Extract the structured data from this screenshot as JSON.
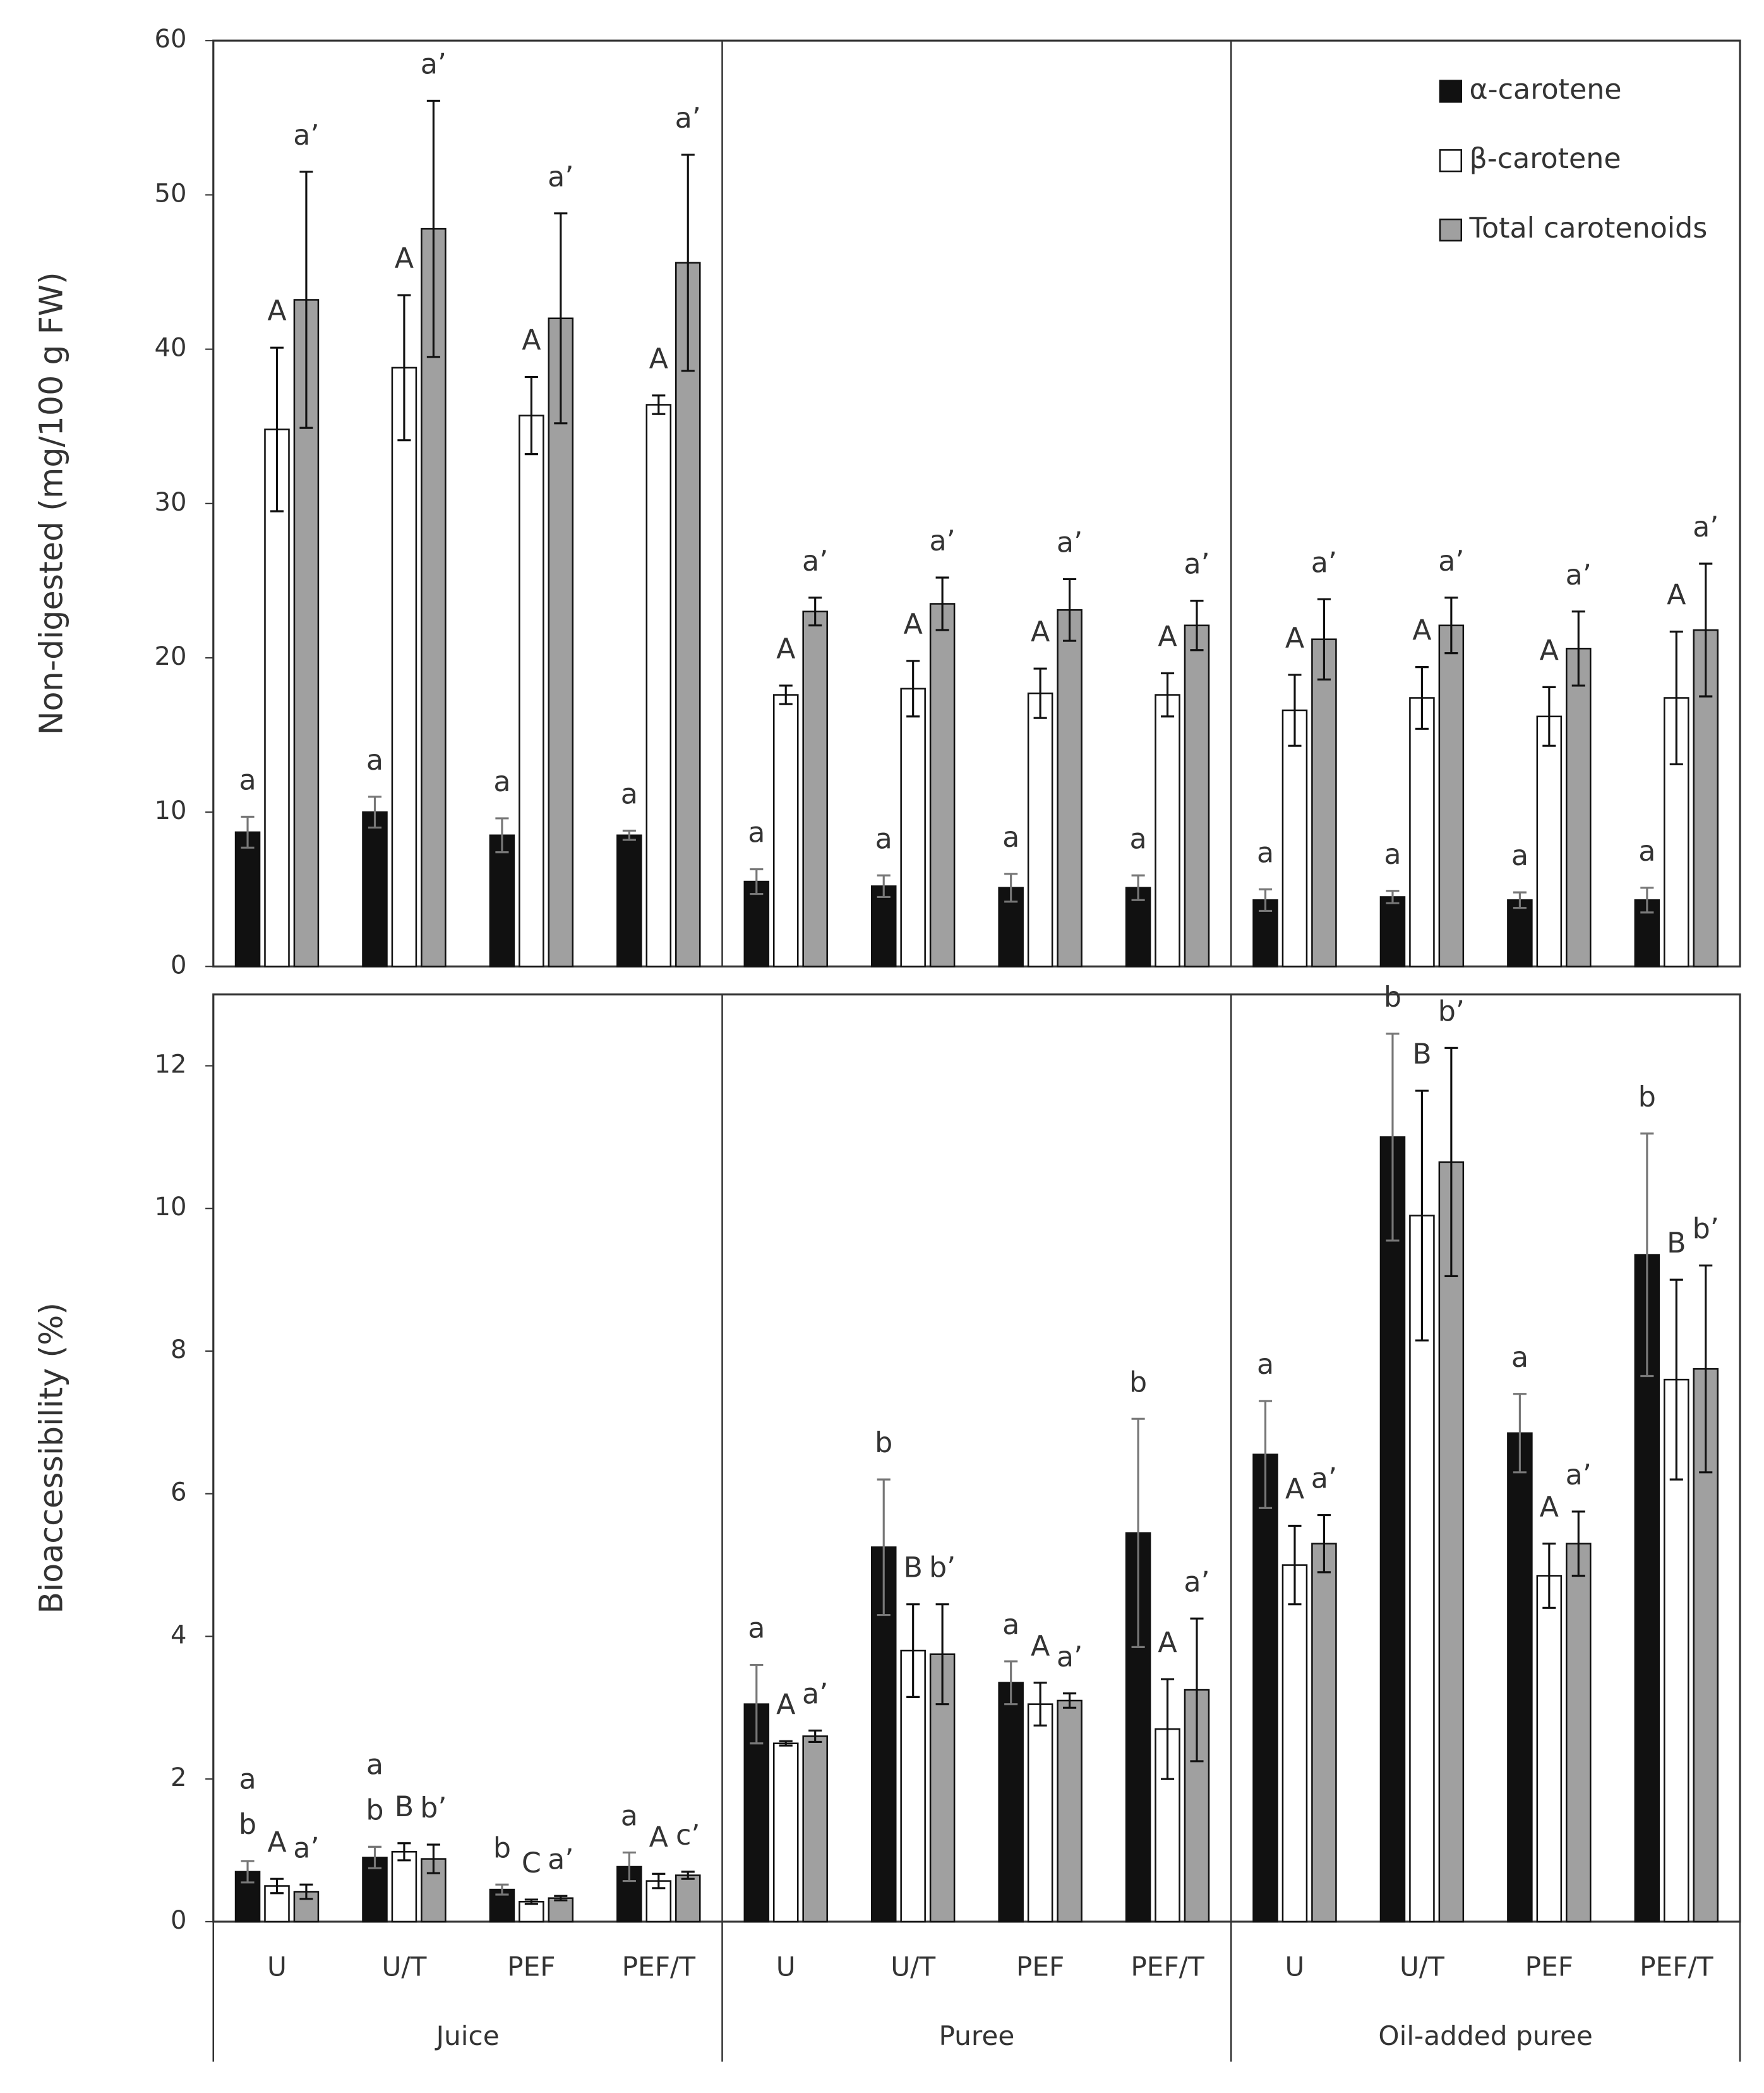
{
  "chart_data": [
    {
      "type": "bar",
      "ylabel": "Non-digested (mg/100 g FW)",
      "ylim": [
        0,
        60
      ],
      "yticks": [
        0,
        10,
        20,
        30,
        40,
        50,
        60
      ],
      "legend": "upper right",
      "series": [
        {
          "name": "α-carotene",
          "color": "#111111",
          "values": [
            8.7,
            10,
            8.5,
            8.5,
            5.5,
            5.2,
            5.1,
            5.1,
            4.3,
            4.5,
            4.3,
            4.3
          ],
          "errors": [
            1,
            1,
            1.1,
            0.3,
            0.8,
            0.7,
            0.9,
            0.8,
            0.7,
            0.4,
            0.5,
            0.8
          ],
          "letters": [
            "a",
            "a",
            "a",
            "a",
            "a",
            "a",
            "a",
            "a",
            "a",
            "a",
            "a",
            "a"
          ]
        },
        {
          "name": "β-carotene",
          "color": "#ffffff",
          "values": [
            34.8,
            38.8,
            35.7,
            36.4,
            17.6,
            18,
            17.7,
            17.6,
            16.6,
            17.4,
            16.2,
            17.4
          ],
          "errors": [
            5.3,
            4.7,
            2.5,
            0.6,
            0.6,
            1.8,
            1.6,
            1.4,
            2.3,
            2,
            1.9,
            4.3
          ],
          "letters": [
            "A",
            "A",
            "A",
            "A",
            "A",
            "A",
            "A",
            "A",
            "A",
            "A",
            "A",
            "A"
          ]
        },
        {
          "name": "Total carotenoids",
          "color": "#a0a0a0",
          "values": [
            43.2,
            47.8,
            42,
            45.6,
            23,
            23.5,
            23.1,
            22.1,
            21.2,
            22.1,
            20.6,
            21.8
          ],
          "errors": [
            8.3,
            8.3,
            6.8,
            7,
            0.9,
            1.7,
            2,
            1.6,
            2.6,
            1.8,
            2.4,
            4.3
          ],
          "letters": [
            "a’",
            "a’",
            "a’",
            "a’",
            "a’",
            "a’",
            "a’",
            "a’",
            "a’",
            "a’",
            "a’",
            "a’"
          ]
        }
      ]
    },
    {
      "type": "bar",
      "ylabel": "Bioaccessibility (%)",
      "ylim": [
        0,
        13
      ],
      "yticks": [
        0,
        2,
        4,
        6,
        8,
        10,
        12
      ],
      "categories": [
        "U",
        "U/T",
        "PEF",
        "PEF/T",
        "U",
        "U/T",
        "PEF",
        "PEF/T",
        "U",
        "U/T",
        "PEF",
        "PEF/T"
      ],
      "groups": [
        "Juice",
        "Puree",
        "Oil-added puree"
      ],
      "series": [
        {
          "values": [
            0.7,
            0.9,
            0.45,
            0.77,
            3.05,
            5.25,
            3.35,
            5.45,
            6.55,
            11,
            6.85,
            9.35
          ],
          "errors": [
            0.15,
            0.15,
            0.07,
            0.2,
            0.55,
            0.95,
            0.3,
            1.6,
            0.75,
            1.45,
            0.55,
            1.7
          ],
          "letters": [
            [
              "a",
              "b"
            ],
            [
              "a",
              "b"
            ],
            "b",
            "a",
            "a",
            "b",
            "a",
            "b",
            "a",
            "b",
            "a",
            "b"
          ]
        },
        {
          "values": [
            0.5,
            0.98,
            0.28,
            0.57,
            2.5,
            3.8,
            3.05,
            2.7,
            5,
            9.9,
            4.85,
            7.6
          ],
          "errors": [
            0.1,
            0.12,
            0.03,
            0.1,
            0.03,
            0.65,
            0.3,
            0.7,
            0.55,
            1.75,
            0.45,
            1.4
          ],
          "letters": [
            "A",
            "B",
            "C",
            "A",
            "A",
            "B",
            "A",
            "A",
            "A",
            "B",
            "A",
            "B"
          ]
        },
        {
          "values": [
            0.42,
            0.88,
            0.33,
            0.65,
            2.6,
            3.75,
            3.1,
            3.25,
            5.3,
            10.65,
            5.3,
            7.75
          ],
          "errors": [
            0.1,
            0.2,
            0.03,
            0.05,
            0.08,
            0.7,
            0.1,
            1,
            0.4,
            1.6,
            0.45,
            1.45
          ],
          "letters": [
            "a’",
            "b’",
            "a’",
            "c’",
            "a’",
            "b’",
            "a’",
            "a’",
            "a’",
            "b’",
            "a’",
            "b’"
          ]
        }
      ]
    }
  ]
}
